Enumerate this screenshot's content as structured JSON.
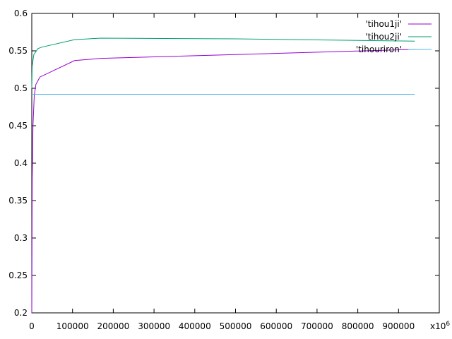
{
  "chart_data": {
    "type": "line",
    "title": "",
    "xlabel": "",
    "ylabel": "",
    "x_multiplier_label": "x10",
    "x_multiplier_exponent": "6",
    "xlim": [
      0,
      1000000
    ],
    "ylim": [
      0.2,
      0.6
    ],
    "x_ticks": [
      0,
      100000,
      200000,
      300000,
      400000,
      500000,
      600000,
      700000,
      800000,
      900000
    ],
    "x_tick_labels": [
      "0",
      "100000",
      "200000",
      "300000",
      "400000",
      "500000",
      "600000",
      "700000",
      "800000",
      "900000"
    ],
    "y_ticks": [
      0.2,
      0.25,
      0.3,
      0.35,
      0.4,
      0.45,
      0.5,
      0.55,
      0.6
    ],
    "y_tick_labels": [
      "0.2",
      "0.25",
      "0.3",
      "0.35",
      "0.4",
      "0.45",
      "0.5",
      "0.55",
      "0.6"
    ],
    "grid": false,
    "legend_position": "top-right",
    "series": [
      {
        "name": "'tihou1ji'",
        "color": "#9400d3",
        "points": [
          [
            0,
            0.2
          ],
          [
            1000,
            0.38
          ],
          [
            3000,
            0.45
          ],
          [
            6000,
            0.49
          ],
          [
            10000,
            0.505
          ],
          [
            20000,
            0.515
          ],
          [
            105000,
            0.537
          ],
          [
            170000,
            0.54
          ],
          [
            500000,
            0.545
          ],
          [
            940000,
            0.552
          ]
        ]
      },
      {
        "name": "'tihou2ji'",
        "color": "#009e73",
        "points": [
          [
            0,
            0.5
          ],
          [
            1000,
            0.53
          ],
          [
            5000,
            0.545
          ],
          [
            15000,
            0.553
          ],
          [
            25000,
            0.555
          ],
          [
            105000,
            0.565
          ],
          [
            170000,
            0.567
          ],
          [
            500000,
            0.566
          ],
          [
            940000,
            0.563
          ]
        ]
      },
      {
        "name": "'tihouriron'",
        "color": "#56b4e9",
        "points": [
          [
            0,
            0.492
          ],
          [
            940000,
            0.492
          ]
        ]
      }
    ]
  }
}
